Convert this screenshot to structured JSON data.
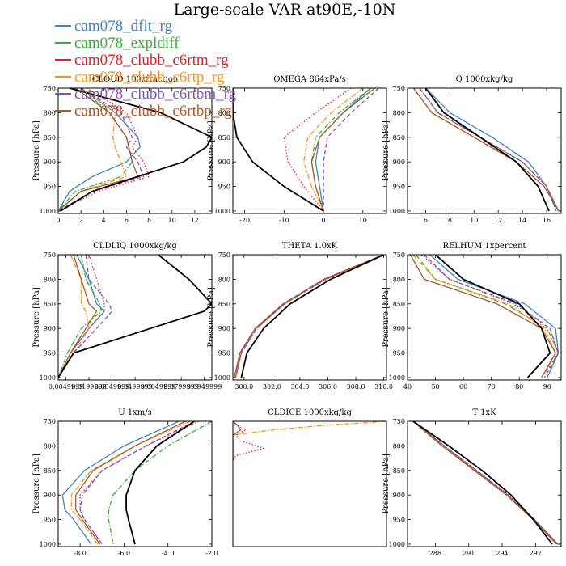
{
  "figure": {
    "title": "Large-scale VAR at90E,-10N"
  },
  "legend": [
    {
      "label": "cam078_dflt_rg",
      "color": "#3d85c6"
    },
    {
      "label": "cam078_expldiff",
      "color": "#3cab3c"
    },
    {
      "label": "cam078_clubb_c6rtm_rg",
      "color": "#e0202a"
    },
    {
      "label": "cam078_clubb_c6rtp_rg",
      "color": "#f7941d"
    },
    {
      "label": "cam078_clubb_c6rtbm_rg",
      "color": "#8552b7"
    },
    {
      "label": "cam078_clubb_c6rtbp_rg",
      "color": "#a8582a"
    }
  ],
  "control_color": "#000000",
  "chart_data": [
    {
      "type": "line",
      "title": "CLOUD  100xfraction",
      "ylabel": "Pressure [hPa]",
      "xlim": [
        0,
        13.5
      ],
      "ylim": [
        1005,
        750
      ],
      "xticks": [
        0,
        2,
        4,
        6,
        8,
        10,
        12
      ],
      "xticklabels": [
        "0",
        "2",
        "4",
        "6",
        "8",
        "10",
        "12"
      ],
      "yticks": [
        1000,
        950,
        900,
        850,
        800,
        750
      ],
      "y": [
        750,
        800,
        850,
        870,
        900,
        930,
        960,
        1000
      ],
      "control": [
        1.0,
        9.0,
        13.5,
        13.0,
        11.0,
        7.0,
        3.0,
        0.2
      ],
      "series": [
        {
          "color": "#3d85c6",
          "style": "solid",
          "x": [
            2.0,
            5.0,
            7.0,
            7.2,
            6.0,
            3.0,
            1.0,
            0
          ]
        },
        {
          "color": "#3cab3c",
          "style": "dashdot",
          "x": [
            2.0,
            4.5,
            6.0,
            6.2,
            6.5,
            5.5,
            1.5,
            0
          ]
        },
        {
          "color": "#e0202a",
          "style": "dotted",
          "x": [
            2.5,
            6.0,
            7.0,
            6.5,
            7.5,
            8.0,
            3.5,
            0
          ]
        },
        {
          "color": "#f7941d",
          "style": "dashdot",
          "x": [
            2.0,
            5.0,
            4.8,
            5.0,
            5.5,
            6.0,
            2.0,
            0
          ]
        },
        {
          "color": "#8552b7",
          "style": "dashed",
          "x": [
            2.0,
            5.5,
            6.5,
            6.0,
            7.0,
            7.5,
            3.0,
            0
          ]
        },
        {
          "color": "#a8582a",
          "style": "solid",
          "x": [
            1.5,
            4.5,
            6.0,
            6.2,
            6.5,
            7.0,
            2.0,
            0
          ]
        }
      ]
    },
    {
      "type": "line",
      "title": "OMEGA  864xPa/s",
      "ylabel": "Pressure [hPa]",
      "xlim": [
        -23,
        16
      ],
      "ylim": [
        1005,
        750
      ],
      "xticks": [
        -20,
        -10,
        0,
        10
      ],
      "xticklabels": [
        "-20",
        "-10",
        "0",
        "10"
      ],
      "yticks": [
        1000,
        950,
        900,
        850,
        800,
        750
      ],
      "y": [
        750,
        800,
        850,
        900,
        950,
        1000
      ],
      "control": [
        -23,
        -23,
        -22,
        -18,
        -10,
        0
      ],
      "series": [
        {
          "color": "#3d85c6",
          "style": "solid",
          "x": [
            12,
            5,
            -1,
            -2,
            -1,
            0
          ]
        },
        {
          "color": "#3cab3c",
          "style": "dashdot",
          "x": [
            12,
            4,
            -2,
            -3,
            -2,
            0
          ]
        },
        {
          "color": "#e0202a",
          "style": "dotted",
          "x": [
            7,
            -2,
            -10,
            -9,
            -5,
            0
          ]
        },
        {
          "color": "#f7941d",
          "style": "dashdot",
          "x": [
            10,
            2,
            -4,
            -5,
            -3,
            0
          ]
        },
        {
          "color": "#8552b7",
          "style": "dashed",
          "x": [
            14,
            7,
            1,
            0,
            0,
            0
          ]
        },
        {
          "color": "#a8582a",
          "style": "solid",
          "x": [
            13,
            5,
            -1,
            -3,
            -2,
            0
          ]
        }
      ]
    },
    {
      "type": "line",
      "title": "Q  1000xkg/kg",
      "ylabel": "Pressure [hPa]",
      "xlim": [
        4.5,
        17.2
      ],
      "ylim": [
        1005,
        750
      ],
      "xticks": [
        6,
        8,
        10,
        12,
        14,
        16
      ],
      "xticklabels": [
        "6",
        "8",
        "10",
        "12",
        "14",
        "16"
      ],
      "yticks": [
        1000,
        950,
        900,
        850,
        800,
        750
      ],
      "y": [
        750,
        800,
        850,
        900,
        950,
        1000
      ],
      "control": [
        6.0,
        7.5,
        10.5,
        13.5,
        15.3,
        16.2
      ],
      "series": [
        {
          "color": "#3d85c6",
          "style": "solid",
          "x": [
            6.0,
            8.0,
            11.5,
            14.5,
            16.0,
            16.8
          ]
        },
        {
          "color": "#3cab3c",
          "style": "dashdot",
          "x": [
            5.5,
            7.0,
            10.5,
            14.0,
            16.0,
            17.0
          ]
        },
        {
          "color": "#e0202a",
          "style": "dotted",
          "x": [
            5.5,
            7.0,
            10.5,
            14.0,
            16.0,
            17.0
          ]
        },
        {
          "color": "#f7941d",
          "style": "dashdot",
          "x": [
            5.0,
            6.5,
            10.0,
            13.5,
            15.8,
            17.0
          ]
        },
        {
          "color": "#8552b7",
          "style": "dashed",
          "x": [
            5.5,
            7.0,
            10.5,
            14.0,
            16.0,
            17.0
          ]
        },
        {
          "color": "#a8582a",
          "style": "solid",
          "x": [
            5.0,
            6.5,
            10.0,
            13.5,
            15.8,
            17.0
          ]
        }
      ]
    },
    {
      "type": "line",
      "title": "CLDLIQ  1000xkg/kg",
      "ylabel": "Pressure [hPa]",
      "xlim": [
        0,
        0.0999
      ],
      "ylim": [
        1005,
        750
      ],
      "xticks": [
        0.005,
        0.02,
        0.035,
        0.05,
        0.065,
        0.08,
        0.095
      ],
      "xticklabels": [
        "0.0049999",
        "0.0199999",
        "0.0349999",
        "0.0499999",
        "0.0649999",
        "0.0799999",
        "0.0949999"
      ],
      "yticks": [
        1000,
        950,
        900,
        850,
        800,
        750
      ],
      "y": [
        750,
        800,
        850,
        865,
        900,
        950,
        1000
      ],
      "control": [
        0.065,
        0.085,
        0.0999,
        0.095,
        0.06,
        0.01,
        0
      ],
      "series": [
        {
          "color": "#3d85c6",
          "style": "solid",
          "x": [
            0.012,
            0.02,
            0.025,
            0.03,
            0.02,
            0.008,
            0
          ]
        },
        {
          "color": "#3cab3c",
          "style": "dashdot",
          "x": [
            0.015,
            0.018,
            0.027,
            0.028,
            0.015,
            0.006,
            0
          ]
        },
        {
          "color": "#e0202a",
          "style": "dotted",
          "x": [
            0.02,
            0.025,
            0.03,
            0.03,
            0.02,
            0.008,
            0
          ]
        },
        {
          "color": "#f7941d",
          "style": "dashdot",
          "x": [
            0.008,
            0.015,
            0.015,
            0.018,
            0.02,
            0.01,
            0
          ]
        },
        {
          "color": "#8552b7",
          "style": "dashed",
          "x": [
            0.018,
            0.02,
            0.033,
            0.035,
            0.025,
            0.01,
            0
          ]
        },
        {
          "color": "#a8582a",
          "style": "solid",
          "x": [
            0.01,
            0.015,
            0.02,
            0.025,
            0.018,
            0.008,
            0
          ]
        }
      ]
    },
    {
      "type": "line",
      "title": "THETA  1.0xK",
      "ylabel": "Pressure [hPa]",
      "xlim": [
        299.2,
        310.2
      ],
      "ylim": [
        1005,
        750
      ],
      "xticks": [
        300,
        302,
        304,
        306,
        308,
        310
      ],
      "xticklabels": [
        "300.0",
        "302.0",
        "304.0",
        "306.0",
        "308.0",
        "310.0"
      ],
      "yticks": [
        1000,
        950,
        900,
        850,
        800,
        750
      ],
      "y": [
        750,
        800,
        850,
        900,
        950,
        1000
      ],
      "control": [
        310.0,
        306.2,
        303.3,
        301.4,
        300.2,
        299.8
      ],
      "series": [
        {
          "color": "#3d85c6",
          "style": "solid",
          "x": [
            310.0,
            305.8,
            302.8,
            300.8,
            299.7,
            299.4
          ]
        },
        {
          "color": "#3cab3c",
          "style": "dashdot",
          "x": [
            310.0,
            305.8,
            302.9,
            300.9,
            299.8,
            299.4
          ]
        },
        {
          "color": "#e0202a",
          "style": "dotted",
          "x": [
            310.0,
            305.9,
            302.9,
            300.9,
            299.8,
            299.4
          ]
        },
        {
          "color": "#f7941d",
          "style": "dashdot",
          "x": [
            310.0,
            305.7,
            302.8,
            300.8,
            299.7,
            299.4
          ]
        },
        {
          "color": "#8552b7",
          "style": "dashed",
          "x": [
            310.0,
            305.8,
            302.9,
            300.9,
            299.8,
            299.4
          ]
        },
        {
          "color": "#a8582a",
          "style": "solid",
          "x": [
            310.0,
            305.7,
            302.8,
            300.8,
            299.7,
            299.3
          ]
        }
      ]
    },
    {
      "type": "line",
      "title": "RELHUM  1xpercent",
      "ylabel": "Pressure [hPa]",
      "xlim": [
        40,
        95
      ],
      "ylim": [
        1005,
        750
      ],
      "xticks": [
        40,
        50,
        60,
        70,
        80,
        90
      ],
      "xticklabels": [
        "40",
        "50",
        "60",
        "70",
        "80",
        "90"
      ],
      "yticks": [
        1000,
        950,
        900,
        850,
        800,
        750
      ],
      "y": [
        750,
        800,
        850,
        900,
        950,
        1000
      ],
      "control": [
        50,
        60,
        80,
        88,
        91,
        83
      ],
      "series": [
        {
          "color": "#3d85c6",
          "style": "solid",
          "x": [
            48,
            58,
            82,
            93,
            94,
            90
          ]
        },
        {
          "color": "#3cab3c",
          "style": "dashdot",
          "x": [
            43,
            50,
            75,
            90,
            94,
            90
          ]
        },
        {
          "color": "#e0202a",
          "style": "dotted",
          "x": [
            45,
            55,
            78,
            91,
            94,
            88
          ]
        },
        {
          "color": "#f7941d",
          "style": "dashdot",
          "x": [
            42,
            50,
            76,
            89,
            93,
            88
          ]
        },
        {
          "color": "#8552b7",
          "style": "dashed",
          "x": [
            46,
            55,
            79,
            91,
            94,
            89
          ]
        },
        {
          "color": "#a8582a",
          "style": "solid",
          "x": [
            41,
            46,
            72,
            88,
            93,
            88
          ]
        }
      ]
    },
    {
      "type": "line",
      "title": "U  1xm/s",
      "ylabel": "Pressure [hPa]",
      "xlim": [
        -9.0,
        -2.0
      ],
      "ylim": [
        1005,
        750
      ],
      "xticks": [
        -8,
        -6,
        -4,
        -2
      ],
      "xticklabels": [
        "-8.0",
        "-6.0",
        "-4.0",
        "-2.0"
      ],
      "yticks": [
        1000,
        950,
        900,
        850,
        800,
        750
      ],
      "y": [
        750,
        800,
        850,
        900,
        930,
        950,
        1000
      ],
      "control": [
        -2.8,
        -4.5,
        -5.5,
        -5.9,
        -5.9,
        -5.8,
        -5.5
      ],
      "series": [
        {
          "color": "#3d85c6",
          "style": "solid",
          "x": [
            -3.5,
            -6.0,
            -7.8,
            -8.8,
            -8.7,
            -8.3,
            -7.5
          ]
        },
        {
          "color": "#3cab3c",
          "style": "dashdot",
          "x": [
            -2.0,
            -4.0,
            -5.5,
            -6.5,
            -6.7,
            -6.7,
            -6.5
          ]
        },
        {
          "color": "#e0202a",
          "style": "dotted",
          "x": [
            -2.6,
            -5.0,
            -7.0,
            -8.0,
            -8.0,
            -7.8,
            -7.0
          ]
        },
        {
          "color": "#f7941d",
          "style": "dashdot",
          "x": [
            -3.0,
            -5.5,
            -7.5,
            -8.4,
            -8.4,
            -8.0,
            -7.2
          ]
        },
        {
          "color": "#8552b7",
          "style": "dashed",
          "x": [
            -2.8,
            -5.0,
            -7.0,
            -7.9,
            -8.0,
            -7.8,
            -7.0
          ]
        },
        {
          "color": "#a8582a",
          "style": "solid",
          "x": [
            -3.2,
            -5.5,
            -7.4,
            -8.2,
            -8.2,
            -7.9,
            -7.1
          ]
        }
      ]
    },
    {
      "type": "line",
      "title": "CLDICE  1000xkg/kg",
      "ylabel": "",
      "xlim": [
        0,
        1
      ],
      "ylim": [
        1005,
        750
      ],
      "xticks": [],
      "xticklabels": [],
      "yticks": [],
      "y": [
        750,
        758,
        768,
        778,
        790,
        805,
        820,
        830
      ],
      "control": null,
      "series": [
        {
          "color": "#f7941d",
          "style": "dashdot",
          "x": [
            1.0,
            0.6,
            0.25,
            0.0,
            0.0,
            0.0,
            0.0,
            0.0
          ]
        },
        {
          "color": "#e0202a",
          "style": "dotted",
          "x": [
            0.0,
            0.03,
            0.08,
            0.02,
            0.05,
            0.2,
            0.02,
            0.0
          ]
        },
        {
          "color": "#a8582a",
          "style": "solid",
          "x": [
            0.0,
            0.03,
            0.05,
            0.0,
            0.0,
            0.0,
            0.0,
            0.0
          ]
        }
      ]
    },
    {
      "type": "line",
      "title": "T  1xK",
      "ylabel": "Pressure [hPa]",
      "xlim": [
        285.5,
        299.3
      ],
      "ylim": [
        1005,
        750
      ],
      "xticks": [
        288,
        291,
        294,
        297
      ],
      "xticklabels": [
        "288",
        "291",
        "294",
        "297"
      ],
      "yticks": [
        1000,
        950,
        900,
        850,
        800,
        750
      ],
      "y": [
        750,
        800,
        850,
        900,
        950,
        1000
      ],
      "control": [
        286.0,
        289.2,
        292.2,
        294.8,
        296.8,
        298.5
      ],
      "series": [
        {
          "color": "#3d85c6",
          "style": "solid",
          "x": [
            286.0,
            288.6,
            291.6,
            294.5,
            296.9,
            299.0
          ]
        },
        {
          "color": "#3cab3c",
          "style": "dashdot",
          "x": [
            286.0,
            288.8,
            291.7,
            294.5,
            296.9,
            299.0
          ]
        },
        {
          "color": "#e0202a",
          "style": "dotted",
          "x": [
            286.0,
            288.8,
            291.7,
            294.6,
            296.9,
            299.0
          ]
        },
        {
          "color": "#f7941d",
          "style": "dashdot",
          "x": [
            286.0,
            288.6,
            291.6,
            294.4,
            296.8,
            298.9
          ]
        },
        {
          "color": "#8552b7",
          "style": "dashed",
          "x": [
            286.0,
            288.8,
            291.7,
            294.5,
            296.9,
            299.0
          ]
        },
        {
          "color": "#a8582a",
          "style": "solid",
          "x": [
            286.0,
            288.6,
            291.5,
            294.4,
            296.8,
            298.9
          ]
        }
      ]
    }
  ]
}
